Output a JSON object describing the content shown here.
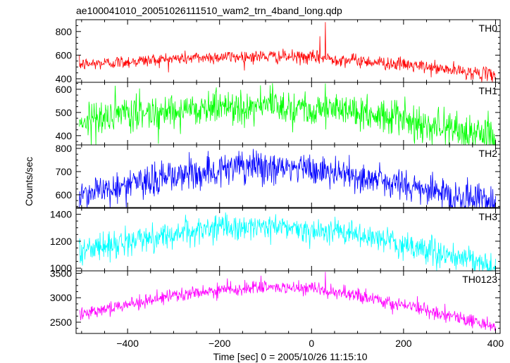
{
  "chart_data": {
    "type": "line",
    "title": "ae100041010_20051026111510_wam2_trn_4band_long.qdp",
    "xlabel": "Time [sec] 0 = 2005/10/26 11:15:10",
    "ylabel": "Counts/sec",
    "xlim": [
      -512,
      410
    ],
    "xticks": [
      -400,
      -200,
      0,
      200,
      400
    ],
    "series": [
      {
        "name": "TH0",
        "color": "#ff0000",
        "ylim": [
          370,
          900
        ],
        "yticks": [
          400,
          600,
          800
        ],
        "profile": {
          "x": [
            -505,
            -400,
            -300,
            -200,
            -100,
            0,
            100,
            200,
            300,
            400
          ],
          "y": [
            520,
            545,
            570,
            585,
            590,
            580,
            555,
            520,
            475,
            430
          ]
        },
        "noise": 28,
        "spikes": [
          {
            "x": 30,
            "y": 880
          },
          {
            "x": 18,
            "y": 760
          }
        ]
      },
      {
        "name": "TH1",
        "color": "#00ff00",
        "ylim": [
          360,
          630
        ],
        "yticks": [
          400,
          500,
          600
        ],
        "profile": {
          "x": [
            -505,
            -400,
            -300,
            -200,
            -100,
            0,
            100,
            200,
            300,
            400
          ],
          "y": [
            465,
            490,
            510,
            525,
            530,
            522,
            500,
            470,
            432,
            390
          ]
        },
        "noise": 38,
        "spikes": [
          {
            "x": 30,
            "y": 625
          }
        ]
      },
      {
        "name": "TH2",
        "color": "#0000ff",
        "ylim": [
          545,
          815
        ],
        "yticks": [
          600,
          700,
          800
        ],
        "profile": {
          "x": [
            -505,
            -400,
            -300,
            -200,
            -100,
            0,
            100,
            200,
            300,
            400
          ],
          "y": [
            605,
            640,
            680,
            710,
            720,
            708,
            680,
            640,
            600,
            565
          ]
        },
        "noise": 36,
        "spikes": []
      },
      {
        "name": "TH3",
        "color": "#00ffff",
        "ylim": [
          980,
          1445
        ],
        "yticks": [
          1000,
          1200,
          1400
        ],
        "profile": {
          "x": [
            -505,
            -400,
            -300,
            -200,
            -100,
            0,
            100,
            200,
            300,
            400
          ],
          "y": [
            1130,
            1195,
            1255,
            1300,
            1310,
            1290,
            1245,
            1175,
            1090,
            1000
          ]
        },
        "noise": 48,
        "spikes": []
      },
      {
        "name": "TH0123",
        "color": "#ff00ff",
        "ylim": [
          2270,
          3550
        ],
        "yticks": [
          2500,
          3000,
          3500
        ],
        "profile": {
          "x": [
            -505,
            -400,
            -300,
            -200,
            -100,
            0,
            100,
            200,
            300,
            400
          ],
          "y": [
            2680,
            2870,
            3030,
            3160,
            3220,
            3170,
            3040,
            2850,
            2640,
            2410
          ]
        },
        "noise": 70,
        "spikes": [
          {
            "x": 30,
            "y": 3530
          }
        ]
      }
    ]
  }
}
